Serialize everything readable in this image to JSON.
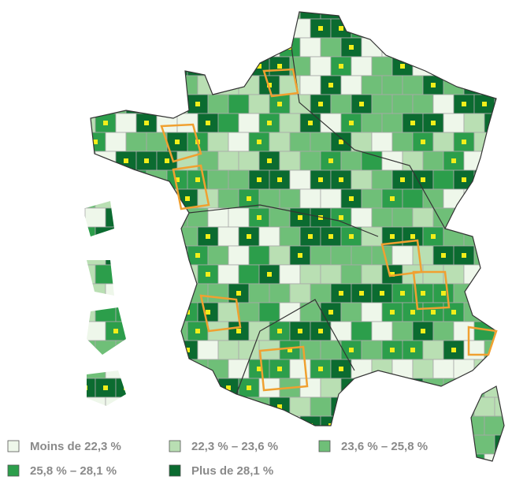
{
  "legend": {
    "items": [
      {
        "label": "Moins de 22,3 %",
        "color": "#eef7ea"
      },
      {
        "label": "22,3 % – 23,6 %",
        "color": "#b9dfb3"
      },
      {
        "label": "23,6 % – 25,8 %",
        "color": "#6fbf78"
      },
      {
        "label": "25,8 % – 28,1 %",
        "color": "#2c9e4b"
      },
      {
        "label": "Plus de 28,1 %",
        "color": "#0b6b30"
      }
    ]
  }
}
